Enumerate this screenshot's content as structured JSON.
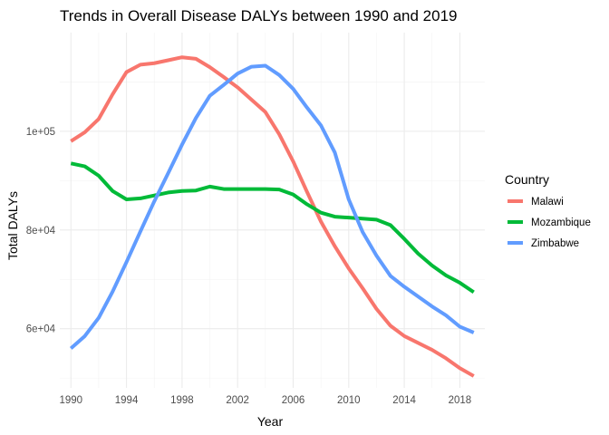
{
  "chart_data": {
    "type": "line",
    "title": "Trends in Overall Disease DALYs between 1990 and 2019",
    "xlabel": "Year",
    "ylabel": "Total DALYs",
    "xlim": [
      1989.2,
      2019.8
    ],
    "ylim": [
      48000,
      120000
    ],
    "x_ticks": [
      1990,
      1994,
      1998,
      2002,
      2006,
      2010,
      2014,
      2018
    ],
    "y_ticks": [
      60000,
      80000,
      100000
    ],
    "y_tick_labels": [
      "6e+04",
      "8e+04",
      "1e+05"
    ],
    "grid": true,
    "legend": {
      "title": "Country",
      "position": "right"
    },
    "x": [
      1990,
      1991,
      1992,
      1993,
      1994,
      1995,
      1996,
      1997,
      1998,
      1999,
      2000,
      2001,
      2002,
      2003,
      2004,
      2005,
      2006,
      2007,
      2008,
      2009,
      2010,
      2011,
      2012,
      2013,
      2014,
      2015,
      2016,
      2017,
      2018,
      2019
    ],
    "series": [
      {
        "name": "Malawi",
        "color": "#F8766D",
        "values": [
          98000,
          99800,
          102500,
          107500,
          112000,
          113500,
          113800,
          114400,
          115000,
          114700,
          113000,
          111000,
          108900,
          106400,
          103900,
          99400,
          93900,
          87700,
          81700,
          76700,
          72200,
          68200,
          64000,
          60600,
          58500,
          57100,
          55700,
          54000,
          52000,
          50400
        ]
      },
      {
        "name": "Mozambique",
        "color": "#00BA38",
        "values": [
          93500,
          92900,
          91000,
          87900,
          86200,
          86400,
          87000,
          87600,
          87900,
          88000,
          88800,
          88300,
          88300,
          88300,
          88300,
          88200,
          87200,
          85200,
          83500,
          82700,
          82500,
          82300,
          82100,
          81000,
          78200,
          75200,
          72800,
          70800,
          69300,
          67400
        ]
      },
      {
        "name": "Zimbabwe",
        "color": "#619CFF",
        "values": [
          56000,
          58500,
          62200,
          67500,
          73500,
          79700,
          85800,
          91500,
          97300,
          102700,
          107200,
          109400,
          111700,
          113100,
          113300,
          111400,
          108600,
          104800,
          101200,
          95700,
          86200,
          79600,
          74800,
          70700,
          68500,
          66500,
          64500,
          62700,
          60400,
          59200
        ]
      }
    ]
  }
}
